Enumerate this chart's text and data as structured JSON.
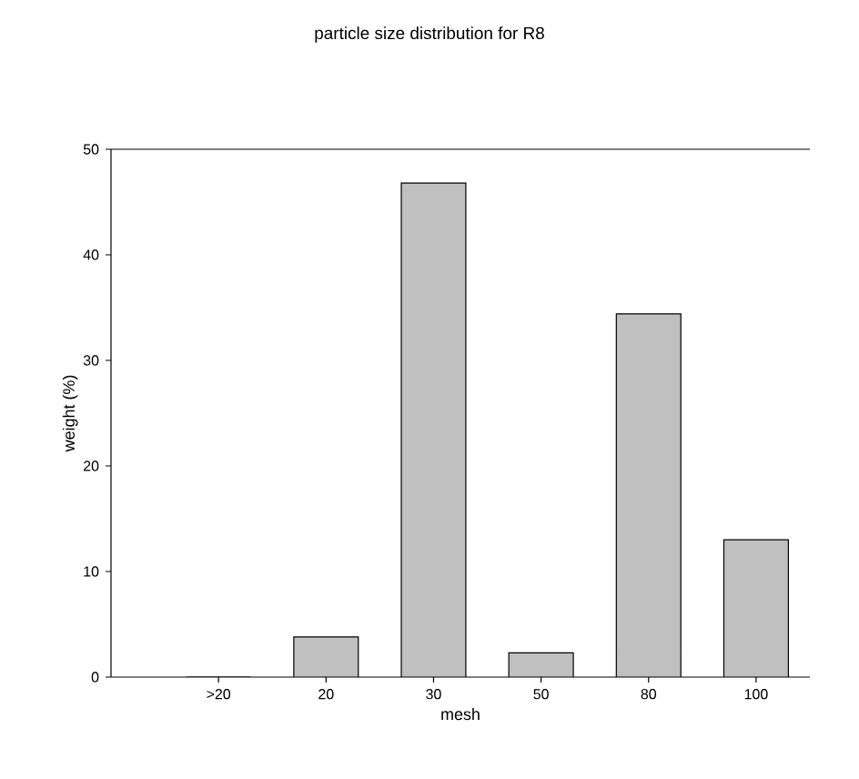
{
  "chart_data": {
    "type": "bar",
    "title": "particle size distribution for R8",
    "xlabel": "mesh",
    "ylabel": "weight (%)",
    "categories": [
      ">20",
      "20",
      "30",
      "50",
      "80",
      "100"
    ],
    "values": [
      0,
      3.8,
      46.8,
      2.3,
      34.4,
      13.0
    ],
    "color": "#c0c0c0",
    "ylim": [
      0,
      50
    ],
    "yticks": [
      0,
      10,
      20,
      30,
      40,
      50
    ]
  }
}
